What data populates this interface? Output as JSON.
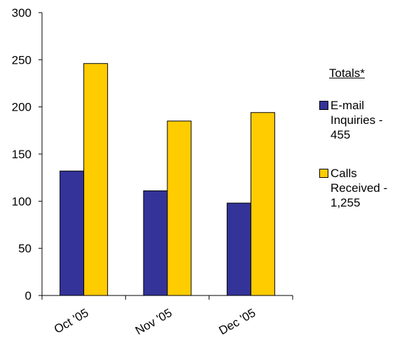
{
  "chart_data": {
    "type": "bar",
    "categories": [
      "Oct '05",
      "Nov '05",
      "Dec '05"
    ],
    "series": [
      {
        "name": "E-mail Inquiries - 455",
        "color": "#333399",
        "values": [
          132,
          111,
          98
        ]
      },
      {
        "name": "Calls Received - 1,255",
        "color": "#ffcc00",
        "values": [
          246,
          185,
          194
        ]
      }
    ],
    "legend_title": "Totals*",
    "legend": "right",
    "ylim": [
      0,
      300
    ],
    "yticks": [
      0,
      50,
      100,
      150,
      200,
      250,
      300
    ]
  }
}
